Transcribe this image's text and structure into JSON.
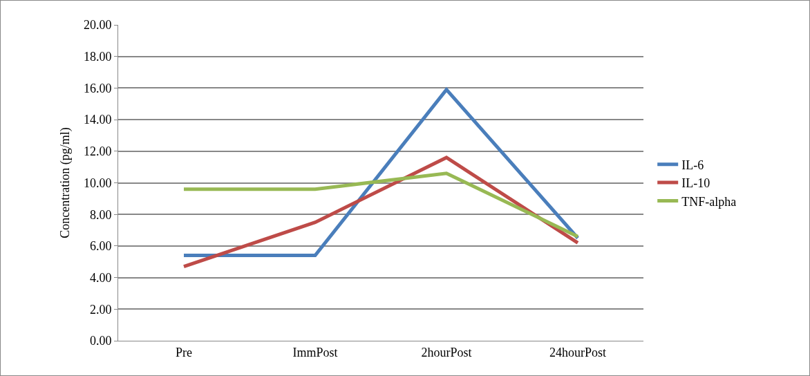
{
  "chart_data": {
    "type": "line",
    "ylabel": "Concentration (pg/ml)",
    "categories": [
      "Pre",
      "ImmPost",
      "2hourPost",
      "24hourPost"
    ],
    "series": [
      {
        "name": "IL-6",
        "color": "#4a7ebb",
        "values": [
          5.4,
          5.4,
          15.9,
          6.5
        ]
      },
      {
        "name": "IL-10",
        "color": "#be4b48",
        "values": [
          4.7,
          7.5,
          11.6,
          6.2
        ]
      },
      {
        "name": "TNF-alpha",
        "color": "#98b954",
        "values": [
          9.6,
          9.6,
          10.6,
          6.6
        ]
      }
    ],
    "ylim": [
      0,
      20
    ],
    "yticks": [
      {
        "value": 0,
        "label": "0.00"
      },
      {
        "value": 2,
        "label": "2.00"
      },
      {
        "value": 4,
        "label": "4.00"
      },
      {
        "value": 6,
        "label": "6.00"
      },
      {
        "value": 8,
        "label": "8.00"
      },
      {
        "value": 10,
        "label": "10.00"
      },
      {
        "value": 12,
        "label": "12.00"
      },
      {
        "value": 14,
        "label": "14.00"
      },
      {
        "value": 16,
        "label": "16.00"
      },
      {
        "value": 18,
        "label": "18.00"
      },
      {
        "value": 20,
        "label": "20.00"
      }
    ],
    "grid": "y",
    "legend": "right",
    "marker": "none",
    "line_style": "solid"
  }
}
